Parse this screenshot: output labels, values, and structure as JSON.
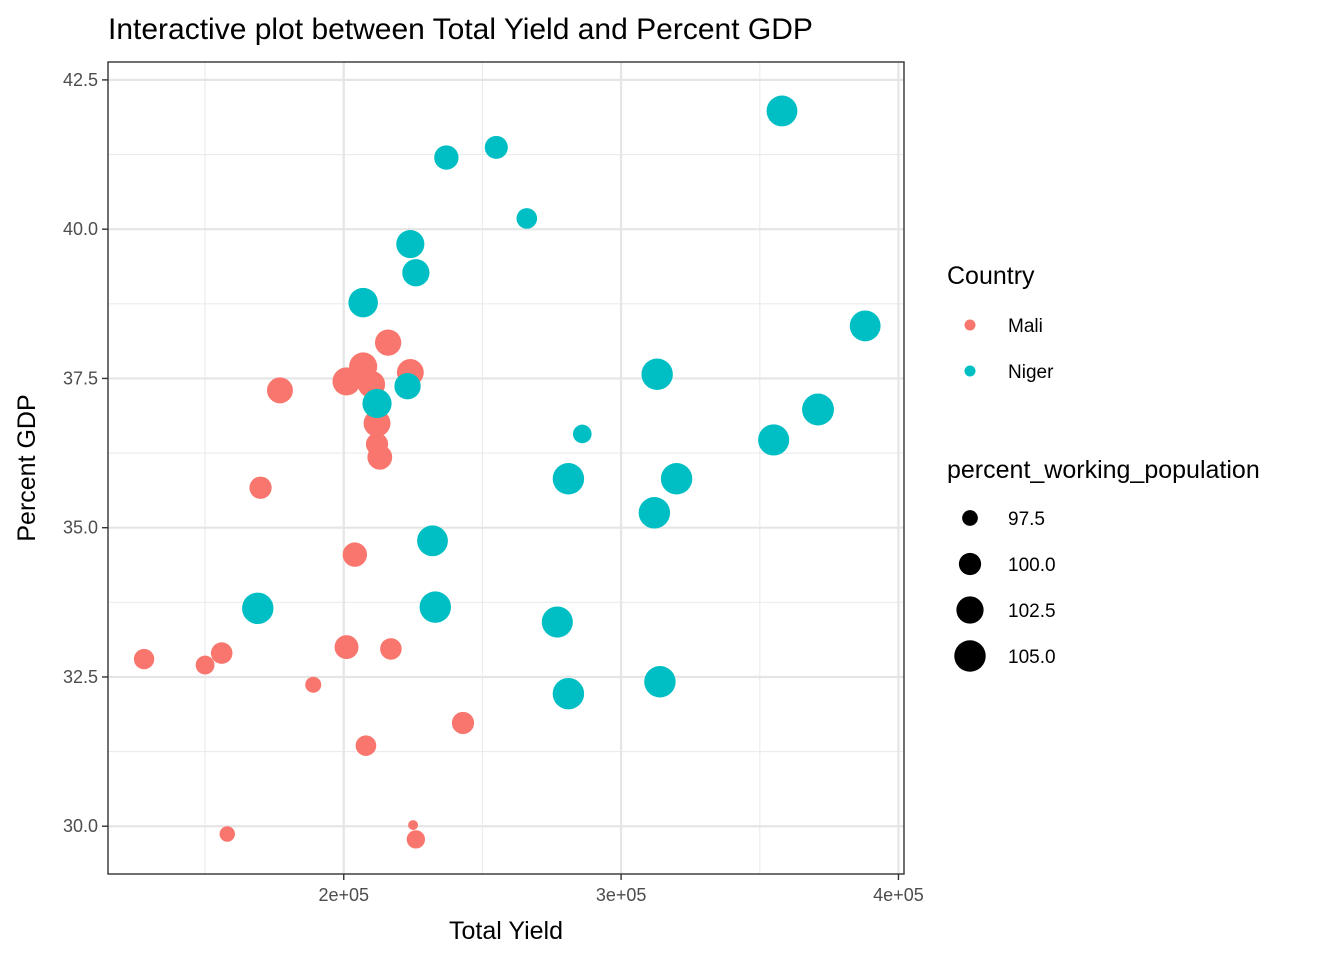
{
  "chart_data": {
    "type": "scatter",
    "title": "Interactive plot between Total Yield and Percent GDP",
    "xlabel": "Total Yield",
    "ylabel": "Percent GDP",
    "xlim": [
      115000,
      402000
    ],
    "ylim": [
      29.2,
      42.8
    ],
    "x_ticks": [
      200000,
      300000,
      400000
    ],
    "x_tick_labels": [
      "2e+05",
      "3e+05",
      "4e+05"
    ],
    "y_ticks": [
      30.0,
      32.5,
      35.0,
      37.5,
      40.0,
      42.5
    ],
    "y_tick_labels": [
      "30.0",
      "32.5",
      "35.0",
      "37.5",
      "40.0",
      "42.5"
    ],
    "grid": true,
    "legend_position": "right",
    "color_legend": {
      "title": "Country",
      "entries": [
        {
          "label": "Mali",
          "color": "#F8766D"
        },
        {
          "label": "Niger",
          "color": "#00BFC4"
        }
      ]
    },
    "size_legend": {
      "title": "percent_working_population",
      "entries": [
        {
          "label": "97.5",
          "value": 97.5
        },
        {
          "label": "100.0",
          "value": 100.0
        },
        {
          "label": "102.5",
          "value": 102.5
        },
        {
          "label": "105.0",
          "value": 105.0
        }
      ]
    },
    "size_range": [
      95.5,
      106.0
    ],
    "series": [
      {
        "name": "Mali",
        "color": "#F8766D",
        "points": [
          {
            "x": 128000,
            "y": 32.8,
            "size": 99.2
          },
          {
            "x": 150000,
            "y": 32.7,
            "size": 98.6
          },
          {
            "x": 156000,
            "y": 32.9,
            "size": 99.7
          },
          {
            "x": 158000,
            "y": 29.87,
            "size": 97.4
          },
          {
            "x": 170000,
            "y": 35.67,
            "size": 100.0
          },
          {
            "x": 177000,
            "y": 37.3,
            "size": 101.8
          },
          {
            "x": 189000,
            "y": 32.37,
            "size": 97.6
          },
          {
            "x": 201000,
            "y": 33.0,
            "size": 100.8
          },
          {
            "x": 201000,
            "y": 37.45,
            "size": 103.0
          },
          {
            "x": 204000,
            "y": 34.55,
            "size": 101.0
          },
          {
            "x": 207000,
            "y": 37.7,
            "size": 103.0
          },
          {
            "x": 208000,
            "y": 31.35,
            "size": 99.3
          },
          {
            "x": 210000,
            "y": 37.4,
            "size": 102.5
          },
          {
            "x": 212000,
            "y": 36.75,
            "size": 102.3
          },
          {
            "x": 212000,
            "y": 36.4,
            "size": 100.0
          },
          {
            "x": 213000,
            "y": 36.18,
            "size": 101.2
          },
          {
            "x": 216000,
            "y": 38.1,
            "size": 102.0
          },
          {
            "x": 217000,
            "y": 32.97,
            "size": 99.7
          },
          {
            "x": 224000,
            "y": 37.6,
            "size": 102.3
          },
          {
            "x": 225000,
            "y": 30.02,
            "size": 96.0
          },
          {
            "x": 226000,
            "y": 29.78,
            "size": 98.4
          },
          {
            "x": 243000,
            "y": 31.73,
            "size": 100.0
          }
        ]
      },
      {
        "name": "Niger",
        "color": "#00BFC4",
        "points": [
          {
            "x": 169000,
            "y": 33.65,
            "size": 105.0
          },
          {
            "x": 207000,
            "y": 38.77,
            "size": 103.8
          },
          {
            "x": 212000,
            "y": 37.08,
            "size": 103.6
          },
          {
            "x": 223000,
            "y": 37.37,
            "size": 102.0
          },
          {
            "x": 224000,
            "y": 39.75,
            "size": 103.0
          },
          {
            "x": 226000,
            "y": 39.27,
            "size": 102.5
          },
          {
            "x": 232000,
            "y": 34.78,
            "size": 104.6
          },
          {
            "x": 233000,
            "y": 33.67,
            "size": 105.0
          },
          {
            "x": 237000,
            "y": 41.2,
            "size": 101.0
          },
          {
            "x": 255000,
            "y": 41.37,
            "size": 100.4
          },
          {
            "x": 266000,
            "y": 40.18,
            "size": 99.3
          },
          {
            "x": 277000,
            "y": 33.42,
            "size": 104.8
          },
          {
            "x": 281000,
            "y": 35.82,
            "size": 105.0
          },
          {
            "x": 281000,
            "y": 32.22,
            "size": 105.0
          },
          {
            "x": 286000,
            "y": 36.57,
            "size": 98.5
          },
          {
            "x": 312000,
            "y": 35.25,
            "size": 105.0
          },
          {
            "x": 313000,
            "y": 37.57,
            "size": 105.0
          },
          {
            "x": 314000,
            "y": 32.42,
            "size": 105.0
          },
          {
            "x": 320000,
            "y": 35.82,
            "size": 105.0
          },
          {
            "x": 355000,
            "y": 36.47,
            "size": 104.8
          },
          {
            "x": 358000,
            "y": 41.98,
            "size": 104.6
          },
          {
            "x": 371000,
            "y": 36.98,
            "size": 105.3
          },
          {
            "x": 388000,
            "y": 38.38,
            "size": 104.6
          }
        ]
      }
    ]
  }
}
